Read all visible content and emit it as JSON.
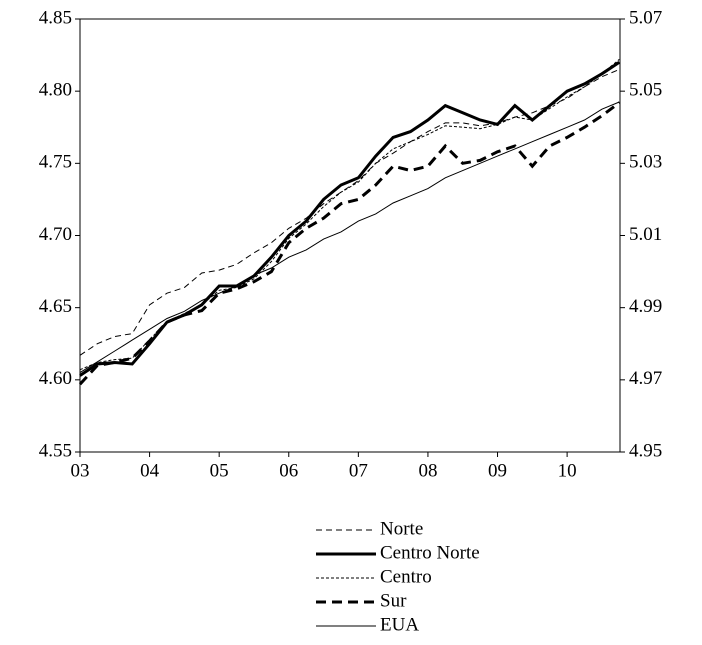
{
  "chart_data": {
    "type": "line",
    "x": [
      3,
      3.25,
      3.5,
      3.75,
      4,
      4.25,
      4.5,
      4.75,
      5,
      5.25,
      5.5,
      5.75,
      6,
      6.25,
      6.5,
      6.75,
      7,
      7.25,
      7.5,
      7.75,
      8,
      8.25,
      8.5,
      8.75,
      9,
      9.25,
      9.5,
      9.75,
      10,
      10.25,
      10.5,
      10.75
    ],
    "xlim": [
      3,
      10.76
    ],
    "xticks": [
      {
        "value": 3,
        "label": "03"
      },
      {
        "value": 4,
        "label": "04"
      },
      {
        "value": 5,
        "label": "05"
      },
      {
        "value": 6,
        "label": "06"
      },
      {
        "value": 7,
        "label": "07"
      },
      {
        "value": 8,
        "label": "08"
      },
      {
        "value": 9,
        "label": "09"
      },
      {
        "value": 10,
        "label": "10"
      }
    ],
    "ylim": [
      4.55,
      4.85
    ],
    "yticks": [
      4.55,
      {
        "value": 4.6,
        "label": "4.60"
      },
      4.65,
      {
        "value": 4.7,
        "label": "4.70"
      },
      4.75,
      {
        "value": 4.8,
        "label": "4.80"
      },
      4.85
    ],
    "y2lim": [
      4.95,
      5.07
    ],
    "y2ticks": [
      4.95,
      4.97,
      4.99,
      5.01,
      5.03,
      5.05,
      5.07
    ],
    "series": [
      {
        "name": "Norte",
        "color": "#000000",
        "values": [
          4.617,
          4.625,
          4.63,
          4.632,
          4.652,
          4.66,
          4.664,
          4.674,
          4.676,
          4.68,
          4.688,
          4.695,
          4.705,
          4.712,
          4.722,
          4.73,
          4.738,
          4.75,
          4.757,
          4.765,
          4.772,
          4.778,
          4.778,
          4.776,
          4.778,
          4.782,
          4.785,
          4.79,
          4.795,
          4.803,
          4.81,
          4.815
        ]
      },
      {
        "name": "Centro Norte",
        "color": "#000000",
        "values": [
          4.603,
          4.611,
          4.612,
          4.611,
          4.625,
          4.64,
          4.645,
          4.652,
          4.665,
          4.665,
          4.672,
          4.685,
          4.7,
          4.71,
          4.725,
          4.735,
          4.74,
          4.755,
          4.768,
          4.772,
          4.78,
          4.79,
          4.785,
          4.78,
          4.777,
          4.79,
          4.78,
          4.79,
          4.8,
          4.805,
          4.812,
          4.82
        ]
      },
      {
        "name": "Centro",
        "color": "#000000",
        "values": [
          4.607,
          4.612,
          4.614,
          4.615,
          4.628,
          4.64,
          4.646,
          4.652,
          4.662,
          4.664,
          4.67,
          4.682,
          4.698,
          4.708,
          4.72,
          4.73,
          4.737,
          4.75,
          4.76,
          4.765,
          4.77,
          4.776,
          4.775,
          4.774,
          4.777,
          4.782,
          4.78,
          4.788,
          4.796,
          4.803,
          4.812,
          4.822
        ]
      },
      {
        "name": "Sur",
        "color": "#000000",
        "values": [
          4.597,
          4.61,
          4.612,
          4.615,
          4.627,
          4.64,
          4.645,
          4.648,
          4.66,
          4.663,
          4.668,
          4.675,
          4.695,
          4.705,
          4.712,
          4.722,
          4.725,
          4.735,
          4.748,
          4.745,
          4.748,
          4.762,
          4.75,
          4.752,
          4.758,
          4.762,
          4.748,
          4.762,
          4.768,
          4.775,
          4.783,
          4.792
        ]
      },
      {
        "name": "EUA",
        "color": "#000000",
        "axis": "y2",
        "values": [
          4.972,
          4.975,
          4.978,
          4.981,
          4.984,
          4.987,
          4.989,
          4.992,
          4.994,
          4.996,
          4.999,
          5.001,
          5.004,
          5.006,
          5.009,
          5.011,
          5.014,
          5.016,
          5.019,
          5.021,
          5.023,
          5.026,
          5.028,
          5.03,
          5.032,
          5.034,
          5.036,
          5.038,
          5.04,
          5.042,
          5.045,
          5.047
        ]
      }
    ]
  }
}
